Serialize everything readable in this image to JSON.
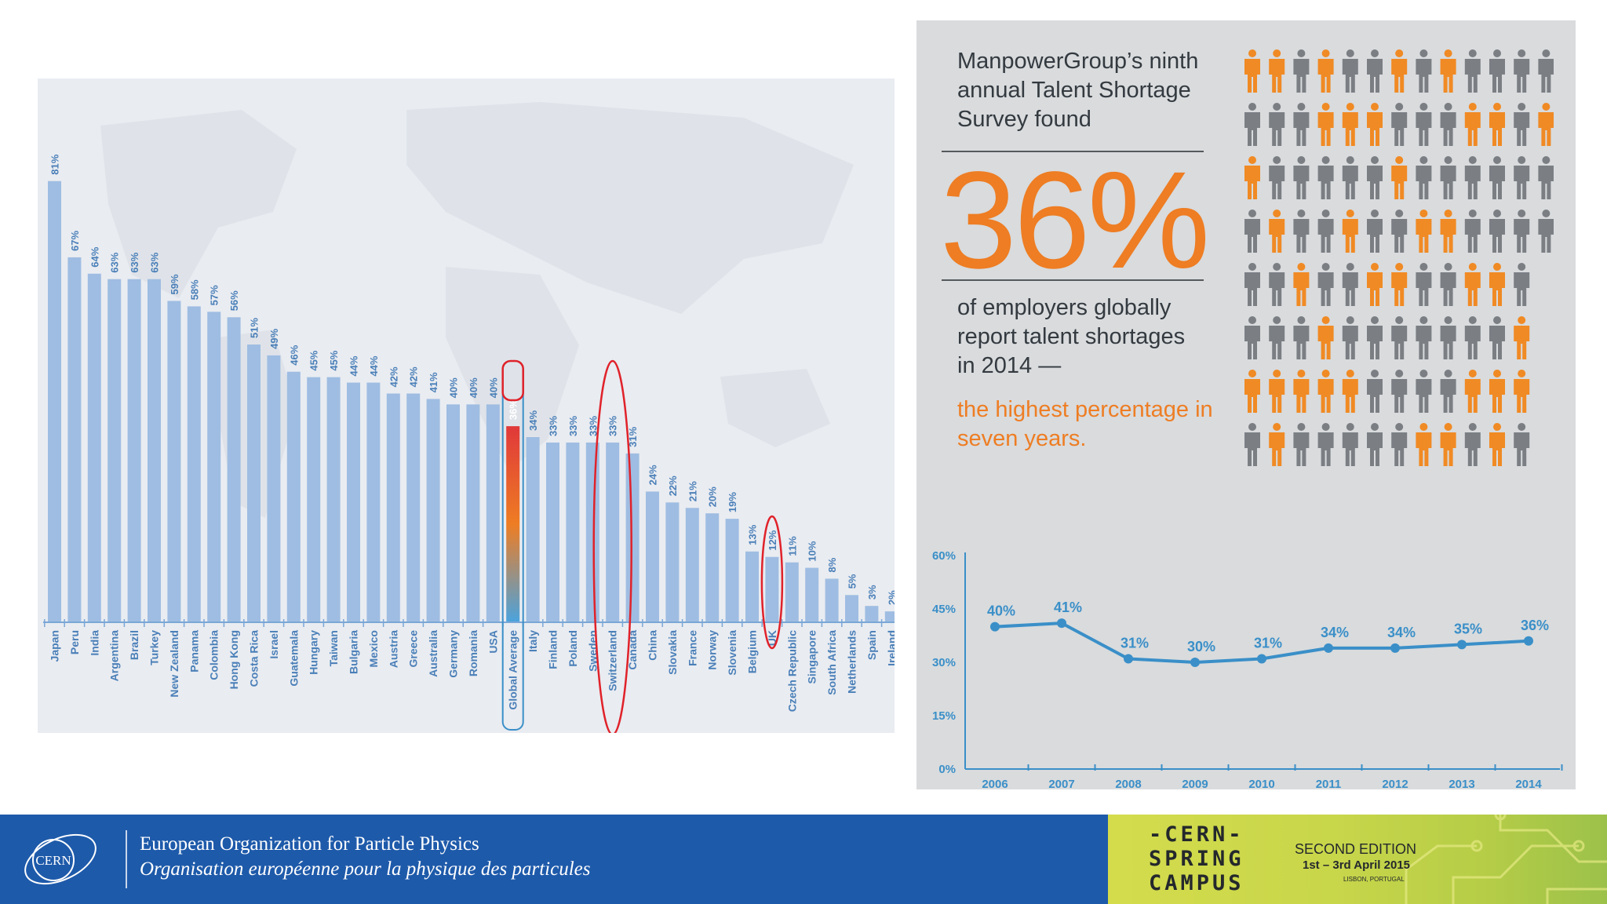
{
  "chart_data": [
    {
      "type": "bar",
      "categories": [
        "Japan",
        "Peru",
        "India",
        "Argentina",
        "Brazil",
        "Turkey",
        "New Zealand",
        "Panama",
        "Colombia",
        "Hong Kong",
        "Costa Rica",
        "Israel",
        "Guatemala",
        "Hungary",
        "Taiwan",
        "Bulgaria",
        "Mexico",
        "Austria",
        "Greece",
        "Australia",
        "Germany",
        "Romania",
        "USA",
        "Global Average",
        "Italy",
        "Finland",
        "Poland",
        "Sweden",
        "Switzerland",
        "Canada",
        "China",
        "Slovakia",
        "France",
        "Norway",
        "Slovenia",
        "Belgium",
        "UK",
        "Czech Republic",
        "Singapore",
        "South Africa",
        "Netherlands",
        "Spain",
        "Ireland"
      ],
      "values": [
        81,
        67,
        64,
        63,
        63,
        63,
        59,
        58,
        57,
        56,
        51,
        49,
        46,
        45,
        45,
        44,
        44,
        42,
        42,
        41,
        40,
        40,
        40,
        36,
        34,
        33,
        33,
        33,
        33,
        31,
        24,
        22,
        21,
        20,
        19,
        13,
        12,
        11,
        10,
        8,
        5,
        3,
        2
      ],
      "labels": [
        "81%",
        "67%",
        "64%",
        "63%",
        "63%",
        "63%",
        "59%",
        "58%",
        "57%",
        "56%",
        "51%",
        "49%",
        "46%",
        "45%",
        "45%",
        "44%",
        "44%",
        "42%",
        "42%",
        "41%",
        "40%",
        "40%",
        "40%",
        "36%",
        "34%",
        "33%",
        "33%",
        "33%",
        "33%",
        "31%",
        "24%",
        "22%",
        "21%",
        "20%",
        "19%",
        "13%",
        "12%",
        "11%",
        "10%",
        "8%",
        "5%",
        "3%",
        "2%"
      ],
      "highlight": "Global Average",
      "circled": [
        "Global Average",
        "Switzerland",
        "UK"
      ],
      "ylim": [
        0,
        85
      ],
      "bar_color": "#9fbde2",
      "highlight_gradient": [
        "#e0383a",
        "#ee7d23",
        "#4aa3de"
      ],
      "circle_color": "#e0222a",
      "label_color": "#4a7fb8"
    },
    {
      "type": "line",
      "x": [
        "2006",
        "2007",
        "2008",
        "2009",
        "2010",
        "2011",
        "2012",
        "2013",
        "2014"
      ],
      "values": [
        40,
        41,
        31,
        30,
        31,
        34,
        34,
        35,
        36
      ],
      "labels": [
        "40%",
        "41%",
        "31%",
        "30%",
        "31%",
        "34%",
        "34%",
        "35%",
        "36%"
      ],
      "yticks": [
        "0%",
        "15%",
        "30%",
        "45%",
        "60%"
      ],
      "ylim": [
        0,
        60
      ],
      "line_color": "#3a8fc8",
      "grid": false
    }
  ],
  "infographic": {
    "headline": "ManpowerGroup’s ninth annual Talent Shortage Survey found",
    "big_value": "36%",
    "subline": "of employers globally report talent shortages in 2014 —",
    "orange_line": "the highest percentage in seven years.",
    "people_grid": [
      [
        "o",
        "o",
        "g",
        "o",
        "g",
        "g",
        "o",
        "g",
        "o",
        "g",
        "g",
        "g",
        "g"
      ],
      [
        "g",
        "g",
        "g",
        "o",
        "o",
        "o",
        "g",
        "g",
        "g",
        "o",
        "o",
        "g",
        "o"
      ],
      [
        "o",
        "g",
        "g",
        "g",
        "g",
        "g",
        "o",
        "g",
        "g",
        "g",
        "g",
        "g",
        "g"
      ],
      [
        "g",
        "o",
        "g",
        "g",
        "o",
        "g",
        "g",
        "o",
        "o",
        "g",
        "g",
        "g",
        "g"
      ],
      [
        "g",
        "g",
        "o",
        "g",
        "g",
        "o",
        "o",
        "g",
        "g",
        "o",
        "o",
        "g"
      ],
      [
        "g",
        "g",
        "g",
        "o",
        "g",
        "g",
        "g",
        "g",
        "g",
        "g",
        "g",
        "o"
      ],
      [
        "o",
        "o",
        "o",
        "o",
        "o",
        "g",
        "g",
        "g",
        "g",
        "o",
        "o",
        "o"
      ],
      [
        "g",
        "o",
        "g",
        "g",
        "g",
        "g",
        "g",
        "o",
        "o",
        "g",
        "o",
        "g"
      ]
    ],
    "person_colors": {
      "o": "#f08a24",
      "g": "#7b7f84"
    }
  },
  "footer": {
    "logo_text": "CERN",
    "org_en": "European Organization for Particle Physics",
    "org_fr": "Organisation européenne pour la physique des particules",
    "campus_title_lines": [
      "-CERN-",
      "SPRING",
      "CAMPUS"
    ],
    "edition": "SECOND EDITION",
    "dates": "1st – 3rd April 2015",
    "place": "LISBON, PORTUGAL"
  },
  "colors": {
    "orange": "#ee7d23",
    "footer_blue": "#1e5aaa",
    "text_dark": "#333a40"
  }
}
